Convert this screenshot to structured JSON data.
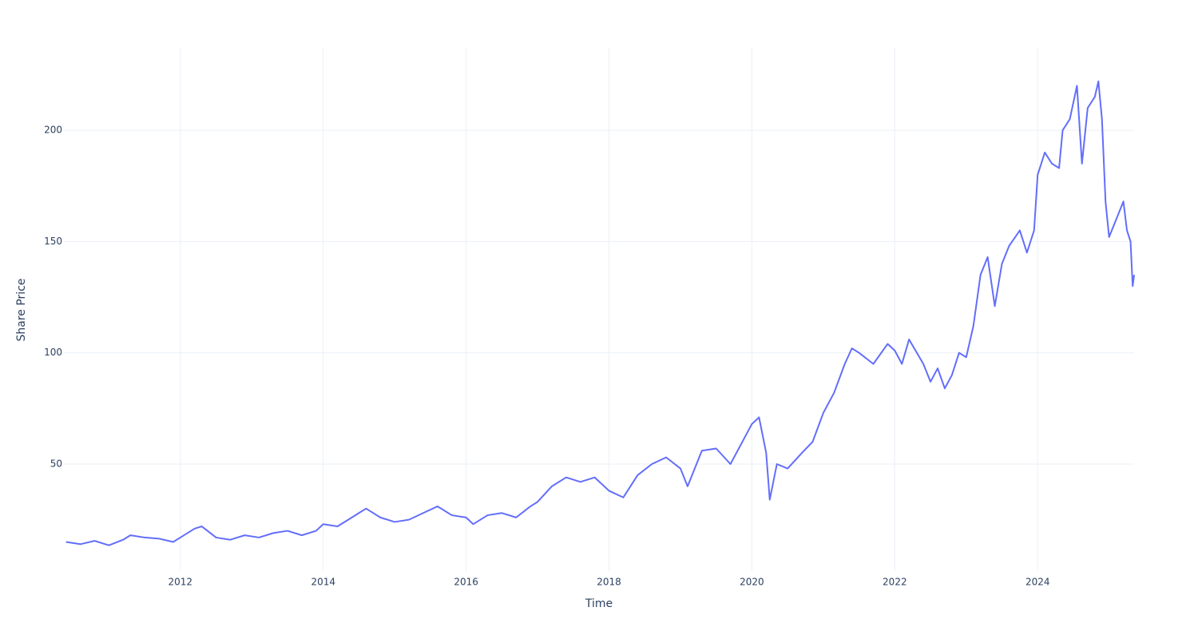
{
  "chart_data": {
    "type": "line",
    "x_label": "Time",
    "y_label": "Share Price",
    "x": [
      2010.4,
      2010.6,
      2010.8,
      2011.0,
      2011.2,
      2011.3,
      2011.5,
      2011.7,
      2011.9,
      2012.0,
      2012.2,
      2012.3,
      2012.5,
      2012.7,
      2012.9,
      2013.1,
      2013.3,
      2013.5,
      2013.7,
      2013.9,
      2014.0,
      2014.2,
      2014.4,
      2014.5,
      2014.6,
      2014.8,
      2015.0,
      2015.2,
      2015.4,
      2015.6,
      2015.8,
      2016.0,
      2016.1,
      2016.3,
      2016.5,
      2016.7,
      2016.9,
      2017.0,
      2017.2,
      2017.4,
      2017.6,
      2017.8,
      2018.0,
      2018.2,
      2018.4,
      2018.6,
      2018.8,
      2019.0,
      2019.1,
      2019.3,
      2019.5,
      2019.7,
      2019.9,
      2020.0,
      2020.1,
      2020.2,
      2020.25,
      2020.35,
      2020.5,
      2020.7,
      2020.85,
      2021.0,
      2021.15,
      2021.3,
      2021.4,
      2021.5,
      2021.7,
      2021.9,
      2022.0,
      2022.1,
      2022.2,
      2022.4,
      2022.5,
      2022.6,
      2022.7,
      2022.8,
      2022.9,
      2023.0,
      2023.1,
      2023.2,
      2023.3,
      2023.4,
      2023.5,
      2023.6,
      2023.75,
      2023.85,
      2023.95,
      2024.0,
      2024.1,
      2024.2,
      2024.3,
      2024.35,
      2024.45,
      2024.55,
      2024.62,
      2024.7,
      2024.8,
      2024.85,
      2024.9,
      2024.95,
      2025.0,
      2025.1,
      2025.2,
      2025.25,
      2025.3,
      2025.33,
      2025.35
    ],
    "series": [
      {
        "name": "Share Price",
        "color": "#636efa",
        "values": [
          15,
          14,
          15.5,
          13.5,
          16,
          18,
          17,
          16.5,
          15,
          17,
          21,
          22,
          17,
          16,
          18,
          17,
          19,
          20,
          18,
          20,
          23,
          22,
          26,
          28,
          30,
          26,
          24,
          25,
          28,
          31,
          27,
          26,
          23,
          27,
          28,
          26,
          31,
          33,
          40,
          44,
          42,
          44,
          38,
          35,
          45,
          50,
          53,
          48,
          40,
          56,
          57,
          50,
          62,
          68,
          71,
          55,
          34,
          50,
          48,
          55,
          60,
          73,
          82,
          95,
          102,
          100,
          95,
          104,
          101,
          95,
          106,
          95,
          87,
          93,
          84,
          90,
          100,
          98,
          112,
          135,
          143,
          121,
          140,
          148,
          155,
          145,
          155,
          180,
          190,
          185,
          183,
          200,
          205,
          220,
          185,
          210,
          215,
          222,
          205,
          168,
          152,
          160,
          168,
          155,
          150,
          130,
          135
        ]
      }
    ],
    "xlim": [
      2010.37,
      2025.35
    ],
    "xticks": [
      2012,
      2014,
      2016,
      2018,
      2020,
      2022,
      2024
    ],
    "ylim": [
      1.9,
      237
    ],
    "yticks": [
      50,
      100,
      150,
      200
    ],
    "grid": true
  }
}
